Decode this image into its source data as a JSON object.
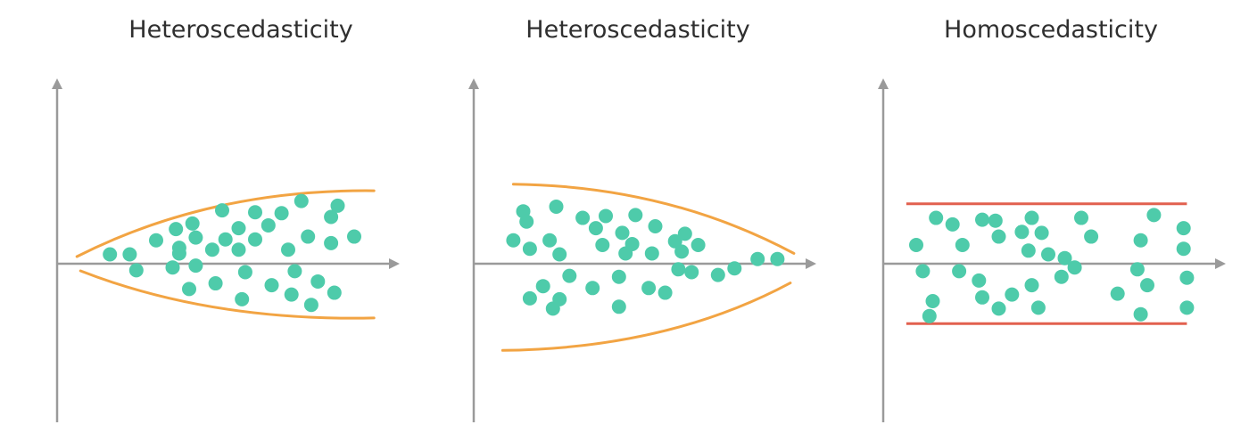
{
  "colors": {
    "axis": "#9a9a9a",
    "envelope_heteroscedastic": "#f2a443",
    "band_homoscedastic": "#e2604f",
    "points": "#4ecbaa"
  },
  "chart_data": [
    {
      "type": "scatter",
      "title": "Heteroscedasticity",
      "xlabel": "",
      "ylabel": "",
      "xlim": [
        0,
        100
      ],
      "ylim": [
        -100,
        100
      ],
      "grid": false,
      "envelope": {
        "shape": "widening",
        "start": {
          "x": 6,
          "y": 0
        },
        "end": {
          "x": 96,
          "upper": 78,
          "lower": -58
        }
      },
      "points": [
        {
          "x": 16,
          "y": 10
        },
        {
          "x": 22,
          "y": 10
        },
        {
          "x": 24,
          "y": -7
        },
        {
          "x": 30,
          "y": 25
        },
        {
          "x": 35,
          "y": -4
        },
        {
          "x": 36,
          "y": 37
        },
        {
          "x": 37,
          "y": 17
        },
        {
          "x": 37,
          "y": 11
        },
        {
          "x": 40,
          "y": -27
        },
        {
          "x": 41,
          "y": 43
        },
        {
          "x": 42,
          "y": 28
        },
        {
          "x": 42,
          "y": -2
        },
        {
          "x": 47,
          "y": 15
        },
        {
          "x": 48,
          "y": -21
        },
        {
          "x": 50,
          "y": 57
        },
        {
          "x": 51,
          "y": 26
        },
        {
          "x": 55,
          "y": 15
        },
        {
          "x": 55,
          "y": 38
        },
        {
          "x": 56,
          "y": -38
        },
        {
          "x": 57,
          "y": -9
        },
        {
          "x": 60,
          "y": 55
        },
        {
          "x": 60,
          "y": 26
        },
        {
          "x": 64,
          "y": 41
        },
        {
          "x": 65,
          "y": -23
        },
        {
          "x": 68,
          "y": 54
        },
        {
          "x": 70,
          "y": 15
        },
        {
          "x": 71,
          "y": -33
        },
        {
          "x": 72,
          "y": -8
        },
        {
          "x": 74,
          "y": 67
        },
        {
          "x": 76,
          "y": 29
        },
        {
          "x": 77,
          "y": -44
        },
        {
          "x": 79,
          "y": -19
        },
        {
          "x": 83,
          "y": 50
        },
        {
          "x": 83,
          "y": 22
        },
        {
          "x": 84,
          "y": -31
        },
        {
          "x": 85,
          "y": 62
        },
        {
          "x": 90,
          "y": 29
        }
      ]
    },
    {
      "type": "scatter",
      "title": "Heteroscedasticity",
      "xlabel": "",
      "ylabel": "",
      "xlim": [
        0,
        100
      ],
      "ylim": [
        -100,
        100
      ],
      "grid": false,
      "envelope": {
        "shape": "narrowing",
        "start": {
          "x": 12,
          "upper": 85,
          "lower": -66
        },
        "end": {
          "x": 97,
          "upper": 11,
          "lower": -11
        }
      },
      "points": [
        {
          "x": 12,
          "y": 25
        },
        {
          "x": 15,
          "y": 56
        },
        {
          "x": 16,
          "y": 45
        },
        {
          "x": 17,
          "y": 16
        },
        {
          "x": 17,
          "y": -37
        },
        {
          "x": 21,
          "y": -24
        },
        {
          "x": 23,
          "y": 25
        },
        {
          "x": 24,
          "y": -48
        },
        {
          "x": 25,
          "y": 61
        },
        {
          "x": 26,
          "y": 10
        },
        {
          "x": 26,
          "y": -38
        },
        {
          "x": 29,
          "y": -13
        },
        {
          "x": 33,
          "y": 49
        },
        {
          "x": 36,
          "y": -26
        },
        {
          "x": 37,
          "y": 38
        },
        {
          "x": 39,
          "y": 20
        },
        {
          "x": 40,
          "y": 51
        },
        {
          "x": 44,
          "y": -14
        },
        {
          "x": 44,
          "y": -46
        },
        {
          "x": 45,
          "y": 33
        },
        {
          "x": 46,
          "y": 11
        },
        {
          "x": 48,
          "y": 21
        },
        {
          "x": 49,
          "y": 52
        },
        {
          "x": 53,
          "y": -26
        },
        {
          "x": 54,
          "y": 11
        },
        {
          "x": 55,
          "y": 40
        },
        {
          "x": 58,
          "y": -31
        },
        {
          "x": 61,
          "y": 24
        },
        {
          "x": 62,
          "y": -6
        },
        {
          "x": 63,
          "y": 13
        },
        {
          "x": 64,
          "y": 32
        },
        {
          "x": 66,
          "y": -9
        },
        {
          "x": 68,
          "y": 20
        },
        {
          "x": 74,
          "y": -12
        },
        {
          "x": 79,
          "y": -5
        },
        {
          "x": 86,
          "y": 5
        },
        {
          "x": 92,
          "y": 5
        }
      ]
    },
    {
      "type": "scatter",
      "title": "Homoscedasticity",
      "xlabel": "",
      "ylabel": "",
      "xlim": [
        0,
        100
      ],
      "ylim": [
        -100,
        100
      ],
      "grid": false,
      "band": {
        "x_start": 7,
        "x_end": 92,
        "upper": 64,
        "lower": -64
      },
      "points": [
        {
          "x": 10,
          "y": 20
        },
        {
          "x": 12,
          "y": -8
        },
        {
          "x": 14,
          "y": -56
        },
        {
          "x": 15,
          "y": -40
        },
        {
          "x": 16,
          "y": 49
        },
        {
          "x": 21,
          "y": 42
        },
        {
          "x": 23,
          "y": -8
        },
        {
          "x": 24,
          "y": 20
        },
        {
          "x": 29,
          "y": -18
        },
        {
          "x": 30,
          "y": -36
        },
        {
          "x": 30,
          "y": 47
        },
        {
          "x": 34,
          "y": 46
        },
        {
          "x": 35,
          "y": 29
        },
        {
          "x": 35,
          "y": -48
        },
        {
          "x": 39,
          "y": -33
        },
        {
          "x": 42,
          "y": 34
        },
        {
          "x": 44,
          "y": 14
        },
        {
          "x": 45,
          "y": -23
        },
        {
          "x": 45,
          "y": 49
        },
        {
          "x": 47,
          "y": -47
        },
        {
          "x": 48,
          "y": 33
        },
        {
          "x": 50,
          "y": 10
        },
        {
          "x": 54,
          "y": -14
        },
        {
          "x": 55,
          "y": 6
        },
        {
          "x": 58,
          "y": -4
        },
        {
          "x": 60,
          "y": 49
        },
        {
          "x": 63,
          "y": 29
        },
        {
          "x": 71,
          "y": -32
        },
        {
          "x": 77,
          "y": -6
        },
        {
          "x": 78,
          "y": -54
        },
        {
          "x": 78,
          "y": 25
        },
        {
          "x": 80,
          "y": -23
        },
        {
          "x": 82,
          "y": 52
        },
        {
          "x": 91,
          "y": 38
        },
        {
          "x": 91,
          "y": 16
        },
        {
          "x": 92,
          "y": -15
        },
        {
          "x": 92,
          "y": -47
        }
      ]
    }
  ]
}
